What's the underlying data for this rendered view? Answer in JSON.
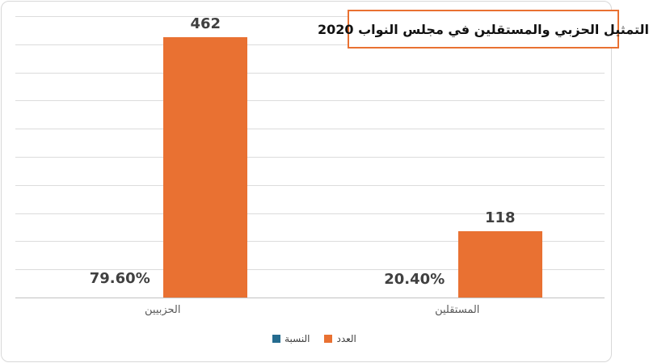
{
  "title": "التمثيل الحزبي والمستقلين في مجلس النواب 2020",
  "chart_data": {
    "type": "bar",
    "title": "التمثيل الحزبي والمستقلين في مجلس النواب 2020",
    "categories": [
      "الحزبيين",
      "المستقلين"
    ],
    "series": [
      {
        "name": "النسبة",
        "color": "#256C8F",
        "values": [
          0.796,
          0.204
        ],
        "labels": [
          "79.60%",
          "20.40%"
        ]
      },
      {
        "name": "العدد",
        "color": "#E97132",
        "values": [
          462,
          118
        ],
        "labels": [
          "462",
          "118"
        ]
      }
    ],
    "ylim": [
      0,
      500
    ],
    "y_major_unit": 50,
    "grid": true,
    "y_axis_labels_visible": false,
    "legend_position": "bottom",
    "text_direction": "rtl"
  }
}
